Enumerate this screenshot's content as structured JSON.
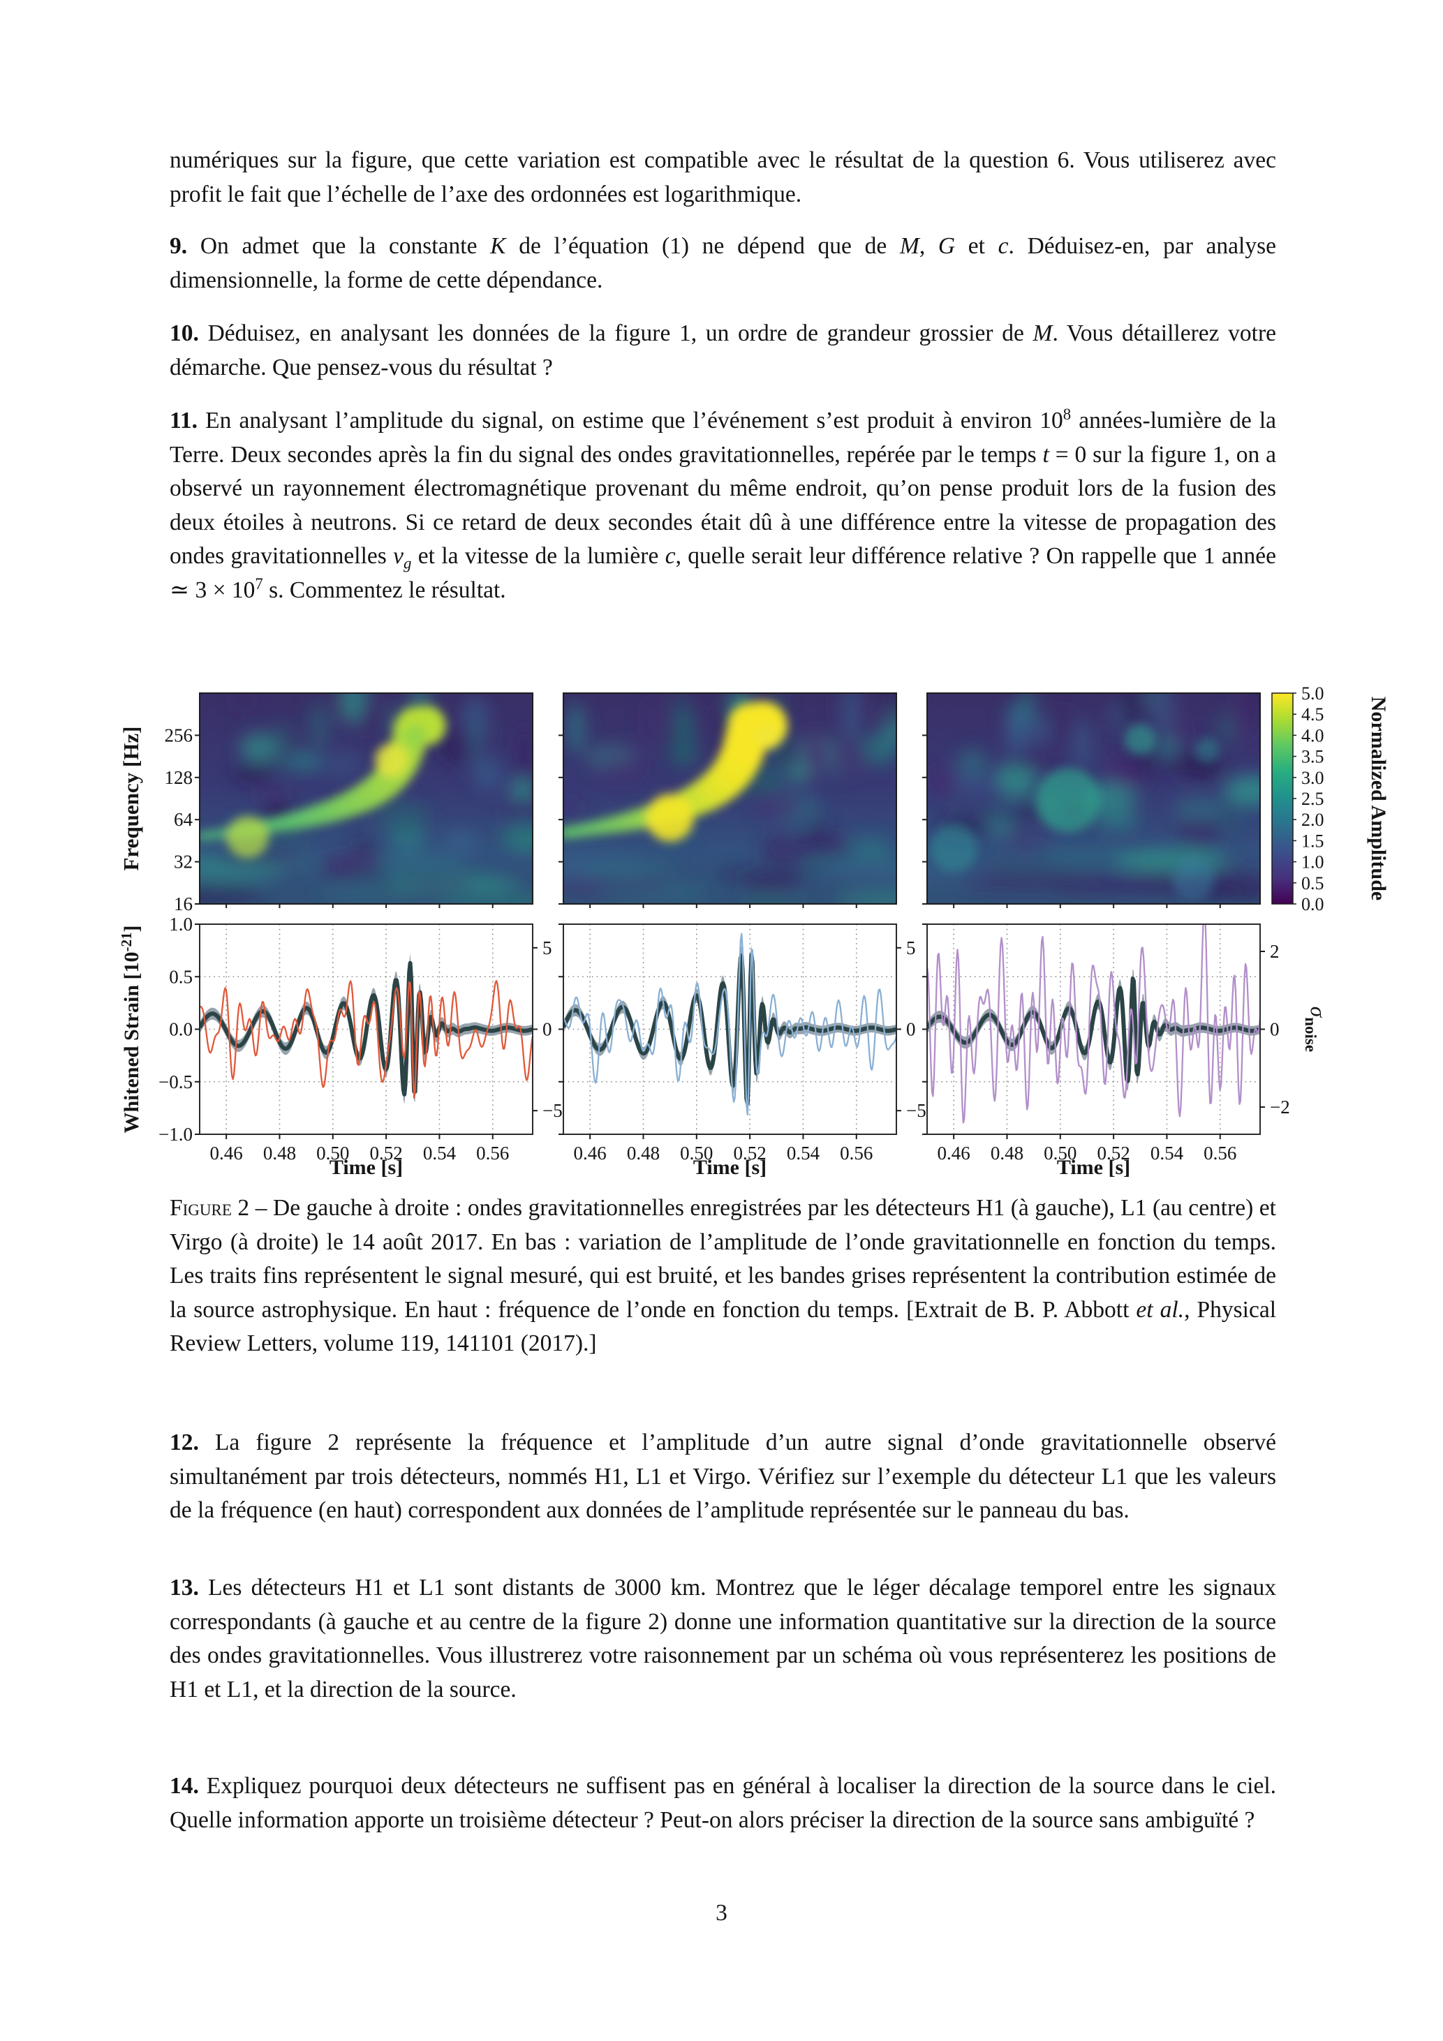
{
  "document": {
    "intro": [
      {
        "t": "numériques sur la figure, que cette variation est compatible avec le résultat de la question 6. Vous utiliserez avec profit le fait que l’échelle de l’axe des ordonnées est logarithmique."
      }
    ],
    "questions": [
      {
        "id": "9",
        "segments": [
          {
            "t": "9. ",
            "b": 1
          },
          {
            "t": "On admet que la constante "
          },
          {
            "t": "K",
            "i": 1
          },
          {
            "t": " de l’équation (1) ne dépend que de "
          },
          {
            "t": "M",
            "i": 1
          },
          {
            "t": ", "
          },
          {
            "t": "G",
            "i": 1
          },
          {
            "t": " et "
          },
          {
            "t": "c",
            "i": 1
          },
          {
            "t": ". Déduisez-en, par analyse dimensionnelle, la forme de cette dépendance."
          }
        ]
      },
      {
        "id": "10",
        "segments": [
          {
            "t": "10. ",
            "b": 1
          },
          {
            "t": "Déduisez, en analysant les données de la figure 1, un ordre de grandeur grossier de "
          },
          {
            "t": "M",
            "i": 1
          },
          {
            "t": ". Vous détaillerez votre démarche. Que pensez-vous du résultat ?"
          }
        ]
      },
      {
        "id": "11",
        "segments": [
          {
            "t": "11. ",
            "b": 1
          },
          {
            "t": "En analysant l’amplitude du signal, on estime que l’événement s’est produit à environ 10"
          },
          {
            "t": "8",
            "sup": 1
          },
          {
            "t": " années-lumière de la Terre. Deux secondes après la fin du signal des ondes gravitationnelles, repérée par le temps "
          },
          {
            "t": "t",
            "i": 1
          },
          {
            "t": " = 0 sur la figure 1, on a observé un rayonnement électromagnétique provenant du même endroit, qu’on pense produit lors de la fusion des deux étoiles à neutrons. Si ce retard de deux secondes était dû à une différence entre la vitesse de propagation des ondes gravitationnelles "
          },
          {
            "t": "v",
            "i": 1
          },
          {
            "t": "g",
            "sub": 1,
            "i": 1
          },
          {
            "t": " et la vitesse de la lumière "
          },
          {
            "t": "c",
            "i": 1
          },
          {
            "t": ", quelle serait leur différence relative ? On rappelle que 1 année ≃ 3 × 10"
          },
          {
            "t": "7",
            "sup": 1
          },
          {
            "t": " s. Commentez le résultat."
          }
        ]
      },
      {
        "id": "12",
        "segments": [
          {
            "t": "12. ",
            "b": 1
          },
          {
            "t": "La figure 2 représente la fréquence et l’amplitude d’un autre signal d’onde gravitationnelle observé simultanément par trois détecteurs, nommés H1, L1 et Virgo. Vérifiez sur l’exemple du détecteur L1 que les valeurs de la fréquence (en haut) correspondent aux données de l’amplitude représentée sur le panneau du bas."
          }
        ]
      },
      {
        "id": "13",
        "segments": [
          {
            "t": "13. ",
            "b": 1
          },
          {
            "t": "Les détecteurs H1 et L1 sont distants de 3000 km. Montrez que le léger décalage temporel entre les signaux correspondants (à gauche et au centre de la figure 2) donne une information quantitative sur la direction de la source des ondes gravitationnelles. Vous illustrerez votre raisonnement par un schéma où vous représenterez les positions de H1 et L1, et la direction de la source."
          }
        ]
      },
      {
        "id": "14",
        "segments": [
          {
            "t": "14. ",
            "b": 1
          },
          {
            "t": "Expliquez pourquoi deux détecteurs ne suffisent pas en général à localiser la direction de la source dans le ciel. Quelle information apporte un troisième détecteur ? Peut-on alors préciser la direction de la source sans ambiguïté ?"
          }
        ]
      }
    ],
    "page_number": "3"
  },
  "figure": {
    "caption_segments": [
      {
        "t": "Figure 2",
        "sc": 1
      },
      {
        "t": " – De gauche à droite : ondes gravitationnelles enregistrées par les détecteurs H1 (à gauche), L1 (au centre) et Virgo (à droite) le 14 août 2017. En bas : variation de l’amplitude de l’onde gravitationnelle en fonction du temps. Les traits fins représentent le signal mesuré, qui est bruité, et les bandes grises représentent la contribution estimée de la source astrophysique. En haut : fréquence de l’onde en fonction du temps. [Extrait de B. P. Abbott "
      },
      {
        "t": "et al.",
        "i": 1
      },
      {
        "t": ", Physical Review Letters, volume 119, 141101 (2017).]"
      }
    ],
    "chart_data": [
      {
        "type": "heatmap",
        "subtype": "spectrogram",
        "ylabel": "Frequency [Hz]",
        "yticks": [
          "256",
          "128",
          "64",
          "32",
          "16"
        ],
        "ytick_values": [
          256,
          128,
          64,
          32,
          16
        ],
        "freq_range_hz": [
          16,
          512
        ],
        "time_range_s": [
          0.45,
          0.575
        ],
        "colorbar": {
          "label": "Normalized Amplitude",
          "ticks": [
            "5.0",
            "4.5",
            "4.0",
            "3.5",
            "3.0",
            "2.5",
            "2.0",
            "1.5",
            "1.0",
            "0.5",
            "0.0"
          ],
          "range": [
            0,
            5
          ]
        },
        "viridis_stops": [
          "#440154",
          "#46327e",
          "#3b518b",
          "#2c718e",
          "#21908d",
          "#27ad81",
          "#5cc863",
          "#aadc32",
          "#fde725"
        ],
        "blob_palette": [
          "#2a7c84",
          "#2f998a",
          "#37638f",
          "#2a1d52",
          "#3a2566",
          "#472a70",
          "#25636f"
        ],
        "chirp_palette": [
          "#2f8e8d",
          "#5fc16e",
          "#b5dd3a",
          "#f6e626"
        ],
        "panels": [
          {
            "name": "H1",
            "seed": 3,
            "chirp_intensity": 0.62,
            "t_merger": 0.531,
            "extra_blobs": [
              {
                "t": 0.522,
                "f": 170,
                "r": 24,
                "color": "#e4e43e",
                "opacity": 0.85
              },
              {
                "t": 0.531,
                "f": 255,
                "r": 16,
                "color": "#7fd052",
                "opacity": 0.6
              },
              {
                "t": 0.468,
                "f": 48,
                "r": 30,
                "color": "#bfdf45",
                "opacity": 0.7
              }
            ]
          },
          {
            "name": "L1",
            "seed": 5,
            "chirp_intensity": 1.0,
            "t_merger": 0.521,
            "extra_blobs": [
              {
                "t": 0.527,
                "f": 250,
                "r": 18,
                "color": "#f2e636",
                "opacity": 0.9
              },
              {
                "t": 0.49,
                "f": 66,
                "r": 34,
                "color": "#f4e62a",
                "opacity": 0.9
              }
            ]
          },
          {
            "name": "Virgo",
            "seed": 9,
            "chirp_intensity": 0,
            "t_merger": 0.529,
            "extra_blobs": [
              {
                "t": 0.503,
                "f": 88,
                "r": 46,
                "color": "#2fa28b",
                "opacity": 0.7
              },
              {
                "t": 0.53,
                "f": 240,
                "r": 22,
                "color": "#2f9b8f",
                "opacity": 0.65
              },
              {
                "t": 0.555,
                "f": 200,
                "r": 18,
                "color": "#2d8f92",
                "opacity": 0.5
              },
              {
                "t": 0.46,
                "f": 40,
                "r": 34,
                "color": "#2f8f95",
                "opacity": 0.55
              },
              {
                "t": 0.55,
                "f": 24,
                "r": 30,
                "color": "#357fa2",
                "opacity": 0.5
              }
            ]
          }
        ]
      },
      {
        "type": "line",
        "subtype": "whitened-strain-timeseries",
        "xlabel": "Time [s]",
        "ylabel_main": "Whitened Strain  [10",
        "ylabel_exp": "-21",
        "ylabel_close": "]",
        "right_label_sigma": "σ",
        "right_label_sub": "noise",
        "xticks": [
          "0.46",
          "0.48",
          "0.50",
          "0.52",
          "0.54",
          "0.56"
        ],
        "xtick_values": [
          0.46,
          0.48,
          0.5,
          0.52,
          0.54,
          0.56
        ],
        "yticks": [
          "1.0",
          "0.5",
          "0.0",
          "−0.5",
          "−1.0"
        ],
        "ytick_values": [
          1,
          0.5,
          0,
          -0.5,
          -1
        ],
        "grid_y_values": [
          0.5,
          0,
          -0.5
        ],
        "xlim": [
          0.45,
          0.575
        ],
        "ylim": [
          -1,
          1
        ],
        "band_color": "#8e9ba6",
        "signal_color": "#2b4446",
        "chirp": {
          "f_start": 45,
          "f_exp": 0.45,
          "t_span": 0.095,
          "f_ring": 240,
          "f_norm": 185
        },
        "panels": [
          {
            "name": "H1",
            "noise_color": "#e0593a",
            "noise_amp": 0.3,
            "noise_freqs": [
              30,
              240
            ],
            "signal_mix": 0.85,
            "signal_peak": 0.63,
            "t_merger": 0.531,
            "seed": 7,
            "right_ticks": [
              "5",
              "0",
              "−5"
            ],
            "right_tick_values": [
              5,
              0,
              -5
            ],
            "right_scale": 6.45
          },
          {
            "name": "L1",
            "noise_color": "#89b0d4",
            "noise_amp": 0.24,
            "noise_freqs": [
              30,
              240
            ],
            "signal_mix": 1.0,
            "signal_peak": 0.72,
            "t_merger": 0.521,
            "seed": 13,
            "right_ticks": [
              "5",
              "0",
              "−5"
            ],
            "right_tick_values": [
              5,
              0,
              -5
            ],
            "right_scale": 6.45
          },
          {
            "name": "Virgo",
            "noise_color": "#b28fca",
            "noise_amp": 0.62,
            "noise_freqs": [
              50,
              280
            ],
            "signal_mix": 0.4,
            "signal_peak": 0.5,
            "t_merger": 0.529,
            "seed": 29,
            "right_ticks": [
              "2",
              "0",
              "−2"
            ],
            "right_tick_values": [
              2,
              0,
              -2
            ],
            "right_scale": 2.7
          }
        ]
      }
    ]
  }
}
